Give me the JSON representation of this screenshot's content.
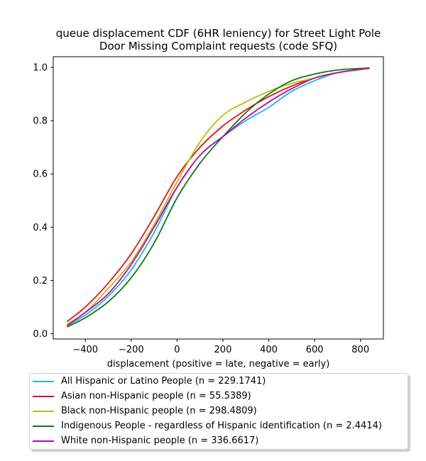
{
  "chart_data": {
    "type": "line",
    "title": "queue displacement CDF (6HR leniency) for Street Light Pole Door Missing Complaint  requests (code SFQ)",
    "title_lines": [
      "queue displacement CDF (6HR leniency) for Street Light Pole",
      "Door Missing Complaint  requests (code SFQ)"
    ],
    "xlabel": "displacement (positive = late, negative = early)",
    "ylabel": "",
    "xlim": [
      -540,
      900
    ],
    "ylim": [
      -0.02,
      1.04
    ],
    "x_ticks": [
      -400,
      -200,
      0,
      200,
      400,
      600,
      800
    ],
    "y_ticks": [
      0.0,
      0.2,
      0.4,
      0.6,
      0.8,
      1.0
    ],
    "x_tick_labels": [
      "−400",
      "−200",
      "0",
      "200",
      "400",
      "600",
      "800"
    ],
    "y_tick_labels": [
      "0.0",
      "0.2",
      "0.4",
      "0.6",
      "0.8",
      "1.0"
    ],
    "grid": false,
    "legend_position": "below",
    "series": [
      {
        "name": "All Hispanic or Latino People (n = 229.1741)",
        "color": "#17becf",
        "x": [
          -480,
          -400,
          -300,
          -200,
          -100,
          0,
          100,
          200,
          300,
          400,
          500,
          600,
          700,
          840
        ],
        "y": [
          0.03,
          0.07,
          0.14,
          0.24,
          0.38,
          0.55,
          0.67,
          0.74,
          0.8,
          0.85,
          0.91,
          0.95,
          0.98,
          0.995
        ]
      },
      {
        "name": "Asian non-Hispanic people (n = 55.5389)",
        "color": "#e6130d",
        "x": [
          -480,
          -400,
          -300,
          -200,
          -100,
          0,
          100,
          200,
          300,
          400,
          500,
          600,
          700,
          840
        ],
        "y": [
          0.045,
          0.1,
          0.19,
          0.3,
          0.44,
          0.59,
          0.7,
          0.78,
          0.84,
          0.89,
          0.93,
          0.96,
          0.98,
          0.998
        ]
      },
      {
        "name": "Black non-Hispanic people (n = 298.4809)",
        "color": "#bcbd00",
        "x": [
          -480,
          -400,
          -300,
          -200,
          -100,
          0,
          100,
          200,
          300,
          400,
          500,
          600,
          700,
          840
        ],
        "y": [
          0.035,
          0.08,
          0.17,
          0.27,
          0.41,
          0.57,
          0.72,
          0.82,
          0.87,
          0.91,
          0.94,
          0.96,
          0.98,
          0.995
        ]
      },
      {
        "name": "Indigenous People - regardless of Hispanic identification (n = 2.4414)",
        "color": "#0a7a0a",
        "x": [
          -480,
          -400,
          -300,
          -200,
          -100,
          0,
          100,
          200,
          300,
          400,
          500,
          600,
          700,
          840
        ],
        "y": [
          0.025,
          0.06,
          0.12,
          0.21,
          0.34,
          0.51,
          0.64,
          0.74,
          0.83,
          0.9,
          0.95,
          0.975,
          0.99,
          0.998
        ]
      },
      {
        "name": "White non-Hispanic people (n = 336.6617)",
        "color": "#c000c0",
        "x": [
          -480,
          -400,
          -300,
          -200,
          -100,
          0,
          100,
          200,
          300,
          400,
          500,
          600,
          700,
          840
        ],
        "y": [
          0.03,
          0.08,
          0.15,
          0.26,
          0.4,
          0.55,
          0.67,
          0.74,
          0.81,
          0.87,
          0.92,
          0.96,
          0.98,
          0.998
        ]
      }
    ]
  }
}
